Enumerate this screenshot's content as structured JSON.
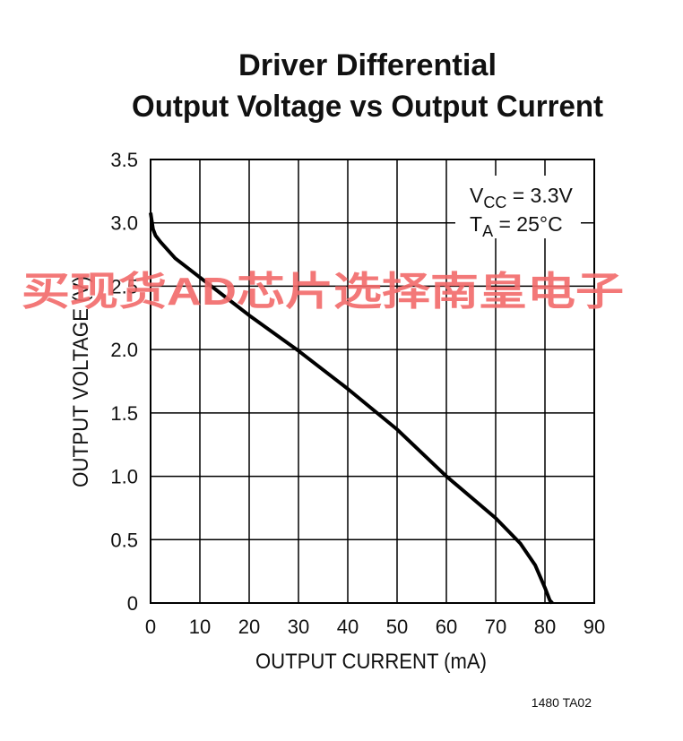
{
  "chart_data": {
    "type": "line",
    "title": [
      "Driver Differential",
      "Output Voltage vs Output Current"
    ],
    "xlabel": "OUTPUT CURRENT (mA)",
    "ylabel": "OUTPUT VOLTAGE (V)",
    "annotations": [
      {
        "main": "V",
        "sub": "CC",
        "rest": " = 3.3V"
      },
      {
        "main": "T",
        "sub": "A",
        "rest": " = 25°C"
      }
    ],
    "watermark": "买现货AD芯片选择南皇电子",
    "figure_code": "1480 TA02",
    "grid": true,
    "xlim": [
      0,
      90
    ],
    "xticks": [
      0,
      10,
      20,
      30,
      40,
      50,
      60,
      70,
      80,
      90
    ],
    "ylim": [
      0,
      3.5
    ],
    "yticks": [
      0,
      0.5,
      {
        "value": 1,
        "label": "1.0"
      },
      1.5,
      {
        "value": 2,
        "label": "2.0"
      },
      2.5,
      {
        "value": 3,
        "label": "3.0"
      },
      3.5
    ],
    "series": [
      {
        "name": "Output Voltage",
        "color": "#000000",
        "x": [
          0,
          0.5,
          1,
          2,
          5,
          10,
          15,
          20,
          30,
          40,
          50,
          60,
          70,
          75,
          78,
          80,
          81,
          81.5
        ],
        "values": [
          3.08,
          2.95,
          2.9,
          2.85,
          2.72,
          2.57,
          2.42,
          2.27,
          1.99,
          1.69,
          1.37,
          1.0,
          0.67,
          0.47,
          0.3,
          0.12,
          0.02,
          0
        ]
      }
    ]
  }
}
